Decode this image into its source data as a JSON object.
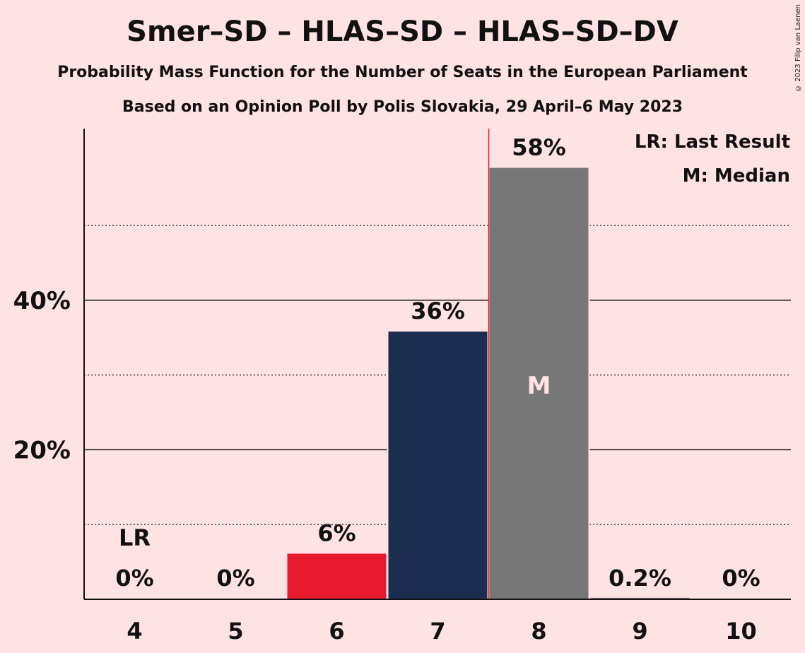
{
  "title": "Smer–SD – HLAS–SD – HLAS–SD–DV",
  "subtitle": "Probability Mass Function for the Number of Seats in the European Parliament",
  "subtitle2": "Based on an Opinion Poll by Polis Slovakia, 29 April–6 May 2023",
  "copyright": "© 2023 Filip van Laenen",
  "legend": {
    "last_result": "LR: Last Result",
    "median": "M: Median"
  },
  "colors": {
    "background": "#ffe2e4",
    "red": "#e8192f",
    "navy": "#1b2e4f",
    "gray": "#777777",
    "median_line": "#e8192f"
  },
  "chart_data": {
    "type": "bar",
    "categories": [
      "4",
      "5",
      "6",
      "7",
      "8",
      "9",
      "10"
    ],
    "values": [
      0,
      0,
      6.1,
      35.8,
      57.7,
      0.2,
      0
    ],
    "labels": [
      "0%",
      "0%",
      "6%",
      "36%",
      "58%",
      "0.2%",
      "0%"
    ],
    "bar_colors": [
      "#e8192f",
      "#e8192f",
      "#e8192f",
      "#1b2e4f",
      "#777777",
      "#777777",
      "#777777"
    ],
    "ylim": [
      0,
      63
    ],
    "yticks": [
      20,
      40
    ],
    "ytick_labels": [
      "20%",
      "40%"
    ],
    "minor_gridlines": [
      10,
      30,
      50
    ],
    "last_result_category": "4",
    "last_result_label": "LR",
    "median_category": "8",
    "median_label": "M",
    "xlabel": "",
    "ylabel": ""
  }
}
